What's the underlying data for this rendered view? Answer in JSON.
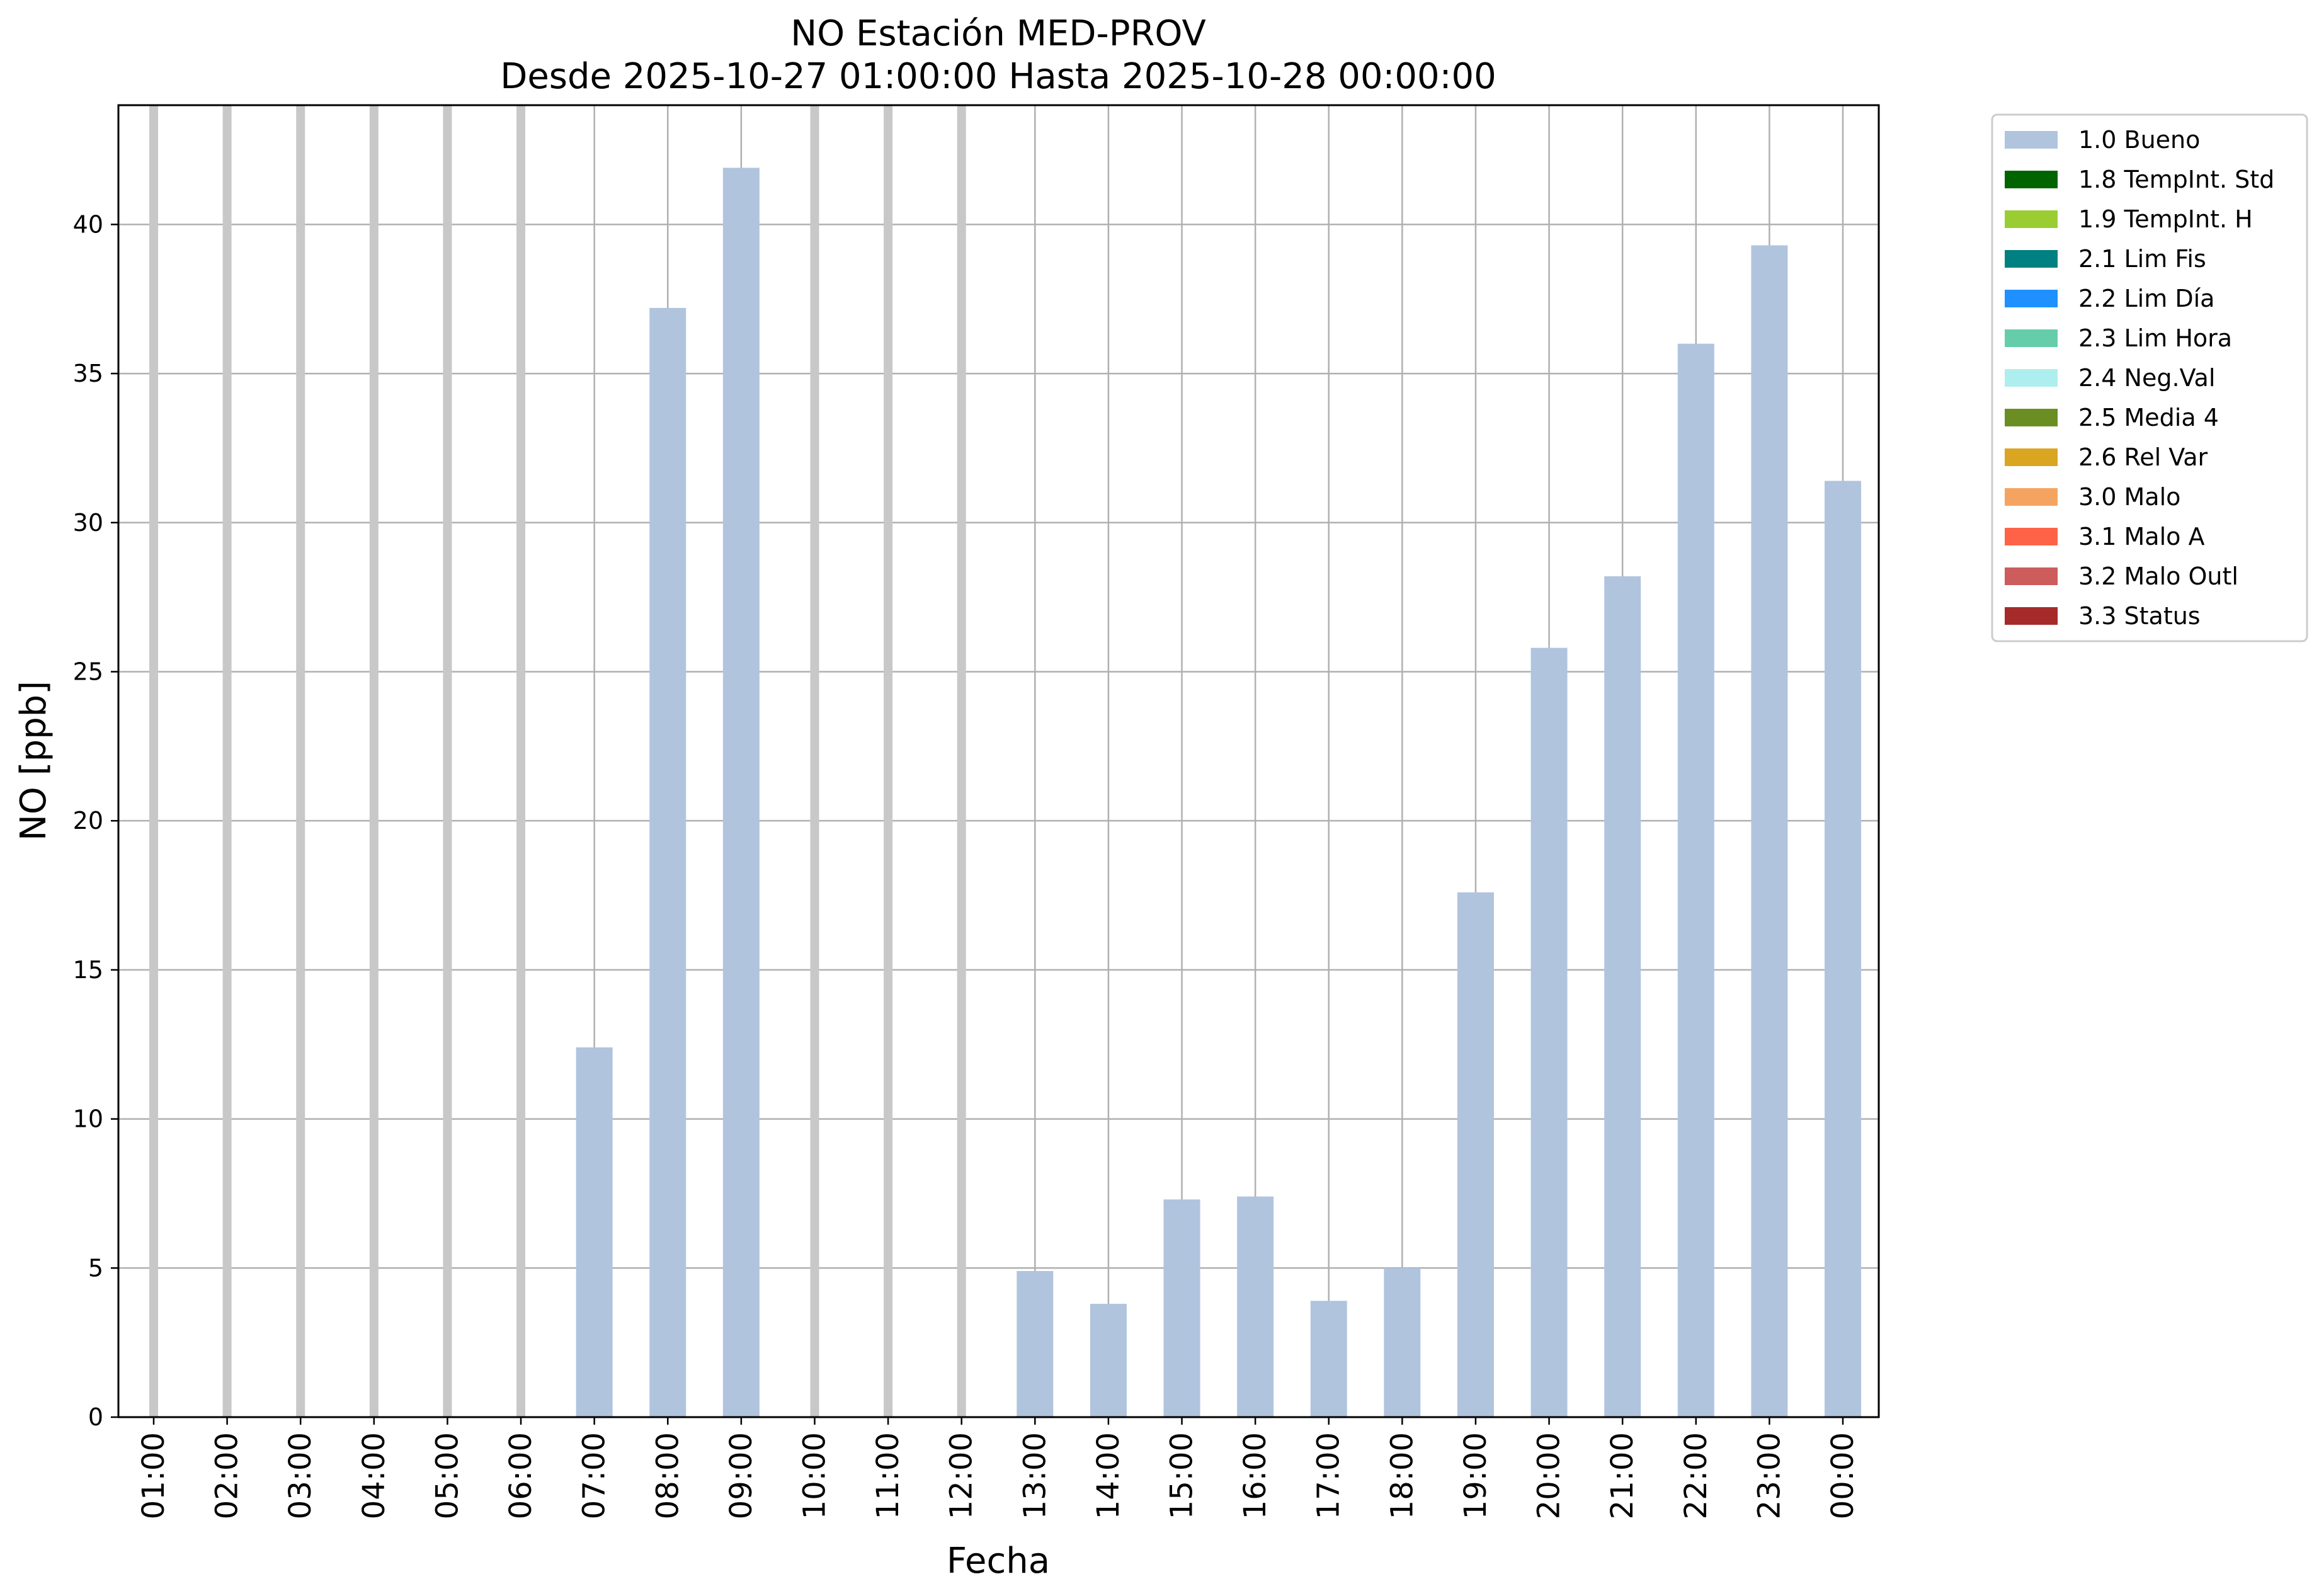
{
  "chart_data": {
    "type": "bar",
    "title": "NO Estación MED-PROV",
    "subtitle": "Desde 2025-10-27 01:00:00 Hasta 2025-10-28 00:00:00",
    "xlabel": "Fecha",
    "ylabel": "NO [ppb]",
    "ylim": [
      0,
      44
    ],
    "yticks": [
      0,
      5,
      10,
      15,
      20,
      25,
      30,
      35,
      40
    ],
    "grid": true,
    "legend_position": "outside-top-right",
    "categories": [
      "01:00",
      "02:00",
      "03:00",
      "04:00",
      "05:00",
      "06:00",
      "07:00",
      "08:00",
      "09:00",
      "10:00",
      "11:00",
      "12:00",
      "13:00",
      "14:00",
      "15:00",
      "16:00",
      "17:00",
      "18:00",
      "19:00",
      "20:00",
      "21:00",
      "22:00",
      "23:00",
      "00:00"
    ],
    "missing_marker_color": "#c8c8c8",
    "series": [
      {
        "name": "1.0 Bueno",
        "color": "#b0c4de",
        "values": [
          null,
          null,
          null,
          null,
          null,
          null,
          12.4,
          37.2,
          41.9,
          null,
          null,
          null,
          4.9,
          3.8,
          7.3,
          7.4,
          3.9,
          5.0,
          17.6,
          25.8,
          28.2,
          36.0,
          39.3,
          31.4
        ]
      }
    ],
    "legend": [
      {
        "label": "1.0 Bueno",
        "color": "#b0c4de"
      },
      {
        "label": "1.8 TempInt. Std",
        "color": "#006400"
      },
      {
        "label": "1.9 TempInt. H",
        "color": "#9acd32"
      },
      {
        "label": "2.1 Lim Fis",
        "color": "#008080"
      },
      {
        "label": "2.2 Lim Día",
        "color": "#1e90ff"
      },
      {
        "label": "2.3 Lim Hora",
        "color": "#66cdaa"
      },
      {
        "label": "2.4 Neg.Val",
        "color": "#afeeee"
      },
      {
        "label": "2.5 Media 4",
        "color": "#6b8e23"
      },
      {
        "label": "2.6 Rel Var",
        "color": "#daa520"
      },
      {
        "label": "3.0 Malo",
        "color": "#f4a460"
      },
      {
        "label": "3.1 Malo A",
        "color": "#ff6347"
      },
      {
        "label": "3.2 Malo Outl",
        "color": "#cd5c5c"
      },
      {
        "label": "3.3 Status",
        "color": "#a52a2a"
      }
    ]
  }
}
